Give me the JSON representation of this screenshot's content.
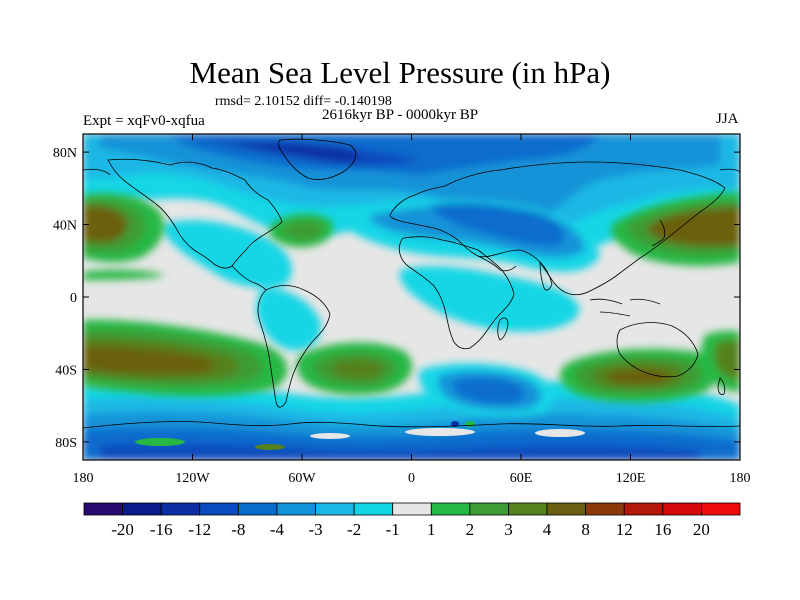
{
  "chart_data": {
    "type": "heatmap",
    "title": "Mean Sea Level Pressure (in hPa)",
    "stats": "rmsd= 2.10152 diff= -0.140198",
    "period": "2616kyr BP - 0000kyr BP",
    "experiment": "Expt = xqFv0-xqfua",
    "season": "JJA",
    "x_ticks": [
      {
        "lon": -180,
        "label": "180"
      },
      {
        "lon": -120,
        "label": "120W"
      },
      {
        "lon": -60,
        "label": "60W"
      },
      {
        "lon": 0,
        "label": "0"
      },
      {
        "lon": 60,
        "label": "60E"
      },
      {
        "lon": 120,
        "label": "120E"
      },
      {
        "lon": 180,
        "label": "180"
      }
    ],
    "y_ticks": [
      {
        "lat": 80,
        "label": "80N"
      },
      {
        "lat": 40,
        "label": "40N"
      },
      {
        "lat": 0,
        "label": "0"
      },
      {
        "lat": -40,
        "label": "40S"
      },
      {
        "lat": -80,
        "label": "80S"
      }
    ],
    "xlim": [
      -180,
      180
    ],
    "ylim": [
      -90,
      90
    ],
    "colorbar": {
      "levels": [
        "-20",
        "-16",
        "-12",
        "-8",
        "-4",
        "-3",
        "-2",
        "-1",
        "1",
        "2",
        "3",
        "4",
        "8",
        "12",
        "16",
        "20"
      ],
      "colors": [
        "#2a0a6e",
        "#0b1a8c",
        "#0c2fa6",
        "#0a4bbd",
        "#0b6ccd",
        "#1293d8",
        "#1bb7e4",
        "#12d6e6",
        "#e6e6e6",
        "#27b745",
        "#3e9b35",
        "#55811f",
        "#6b6011",
        "#8c3a0c",
        "#b3180b",
        "#d40808",
        "#ee0a0a"
      ]
    },
    "regions": [
      {
        "value": -10,
        "color": "#0a4bbd",
        "lon": -15,
        "lat": 80,
        "rlon": 70,
        "rlat": 9
      },
      {
        "value": -5,
        "color": "#1293d8",
        "lon": 45,
        "lat": 38,
        "rlon": 38,
        "rlat": 14
      },
      {
        "value": -2,
        "color": "#12d6e6",
        "lon": 20,
        "lat": -18,
        "rlon": 40,
        "rlat": 12
      },
      {
        "value": -3,
        "color": "#1293d8",
        "lon": -60,
        "lat": -55,
        "rlon": 35,
        "rlat": 10
      },
      {
        "value": -3,
        "color": "#1293d8",
        "lon": 30,
        "lat": -50,
        "rlon": 30,
        "rlat": 11
      },
      {
        "value": -4,
        "color": "#0b6ccd",
        "lon": 20,
        "lat": -75,
        "rlon": 120,
        "rlat": 8
      },
      {
        "value": 4,
        "color": "#6b6011",
        "lon": -175,
        "lat": 40,
        "rlon": 25,
        "rlat": 12
      },
      {
        "value": 2,
        "color": "#27b745",
        "lon": -75,
        "lat": 38,
        "rlon": 14,
        "rlat": 7
      },
      {
        "value": 4,
        "color": "#6b6011",
        "lon": 160,
        "lat": 35,
        "rlon": 30,
        "rlat": 14
      },
      {
        "value": 8,
        "color": "#6b6011",
        "lon": -160,
        "lat": -35,
        "rlon": 35,
        "rlat": 10
      },
      {
        "value": 3,
        "color": "#3e9b35",
        "lon": -25,
        "lat": -40,
        "rlon": 22,
        "rlat": 9
      },
      {
        "value": 8,
        "color": "#6b6011",
        "lon": 120,
        "lat": -45,
        "rlon": 35,
        "rlat": 10
      },
      {
        "value": 4,
        "color": "#55811f",
        "lon": 175,
        "lat": -35,
        "rlon": 15,
        "rlat": 12
      }
    ]
  }
}
